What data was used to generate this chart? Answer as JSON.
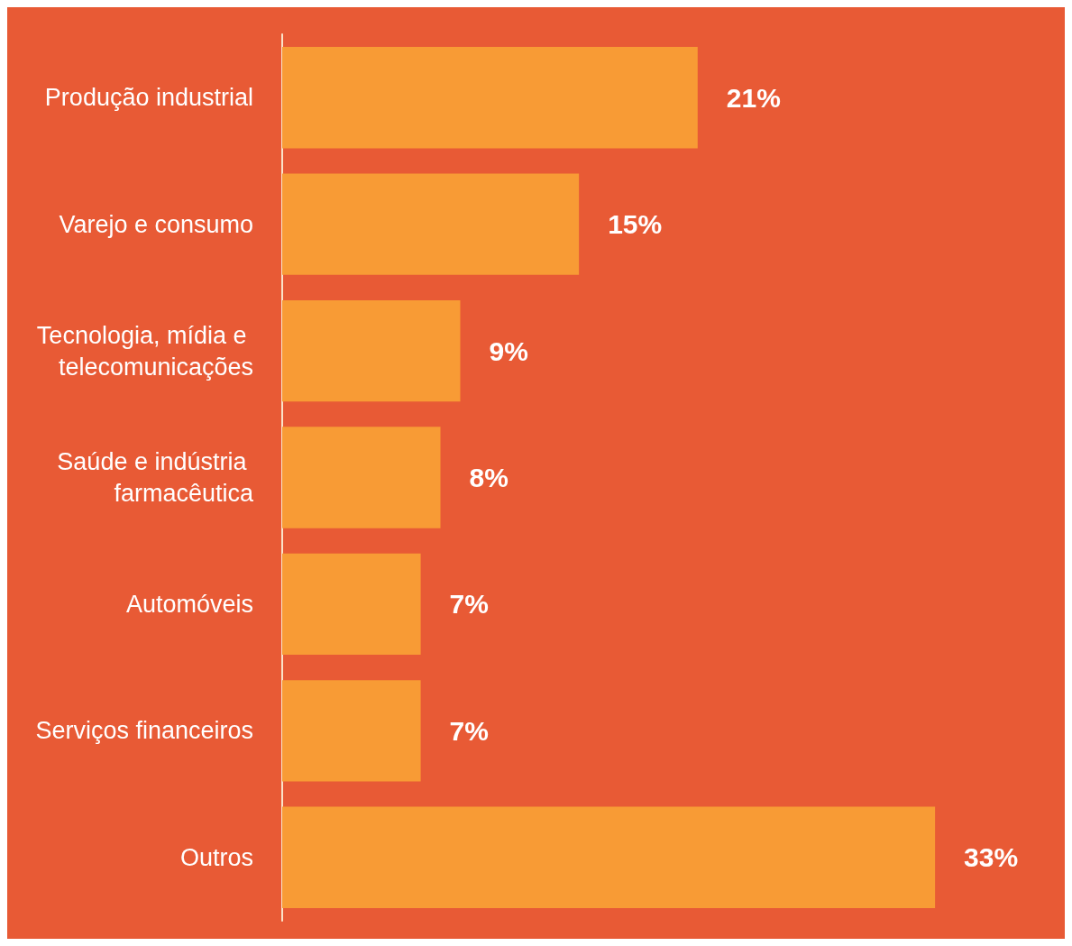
{
  "chart_data": {
    "type": "bar",
    "orientation": "horizontal",
    "categories": [
      "Produção industrial",
      "Varejo e consumo",
      "Tecnologia, mídia e telecomunicações",
      "Saúde e indústria farmacêutica",
      "Automóveis",
      "Serviços financeiros",
      "Outros"
    ],
    "values": [
      21,
      15,
      9,
      8,
      7,
      7,
      33
    ],
    "value_labels": [
      "21%",
      "15%",
      "9%",
      "8%",
      "7%",
      "7%",
      "33%"
    ],
    "color": "#f89b35"
  }
}
